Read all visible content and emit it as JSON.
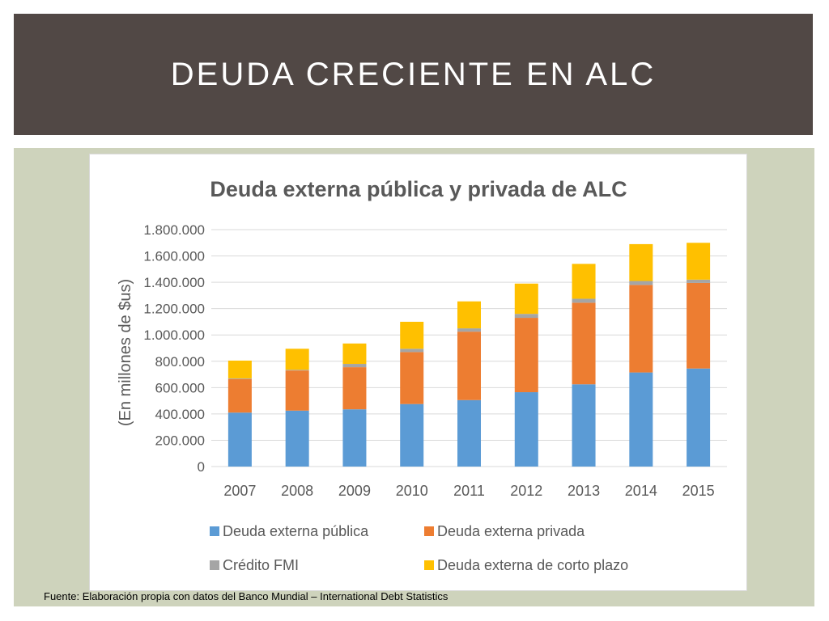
{
  "slide": {
    "title": "DEUDA CRECIENTE EN ALC",
    "source": "Fuente: Elaboración propia con datos del Banco Mundial – International Debt Statistics"
  },
  "colors": {
    "title_bar": "#514845",
    "content_background": "#ced3bc"
  },
  "chart_data": {
    "type": "bar",
    "stacked": true,
    "title": "Deuda externa pública y privada de ALC",
    "xlabel": "",
    "ylabel": "(En millones de $us)",
    "categories": [
      "2007",
      "2008",
      "2009",
      "2010",
      "2011",
      "2012",
      "2013",
      "2014",
      "2015"
    ],
    "ylim": [
      0,
      1800000
    ],
    "yticks": [
      0,
      200000,
      400000,
      600000,
      800000,
      1000000,
      1200000,
      1400000,
      1600000,
      1800000
    ],
    "ytick_labels": [
      "0",
      "200.000",
      "400.000",
      "600.000",
      "800.000",
      "1.000.000",
      "1.200.000",
      "1.400.000",
      "1.600.000",
      "1.800.000"
    ],
    "grid": true,
    "legend_position": "bottom",
    "series": [
      {
        "name": "Deuda externa pública",
        "color": "#5b9bd5",
        "values": [
          410000,
          425000,
          435000,
          475000,
          505000,
          565000,
          625000,
          715000,
          745000
        ]
      },
      {
        "name": "Deuda externa privada",
        "color": "#ed7d31",
        "values": [
          255000,
          305000,
          320000,
          395000,
          520000,
          565000,
          620000,
          665000,
          650000
        ]
      },
      {
        "name": "Crédito FMI",
        "color": "#a5a5a5",
        "values": [
          5000,
          5000,
          25000,
          25000,
          25000,
          30000,
          30000,
          30000,
          25000
        ]
      },
      {
        "name": "Deuda externa de corto plazo",
        "color": "#ffc000",
        "values": [
          135000,
          160000,
          155000,
          205000,
          205000,
          230000,
          265000,
          280000,
          280000
        ]
      }
    ]
  }
}
